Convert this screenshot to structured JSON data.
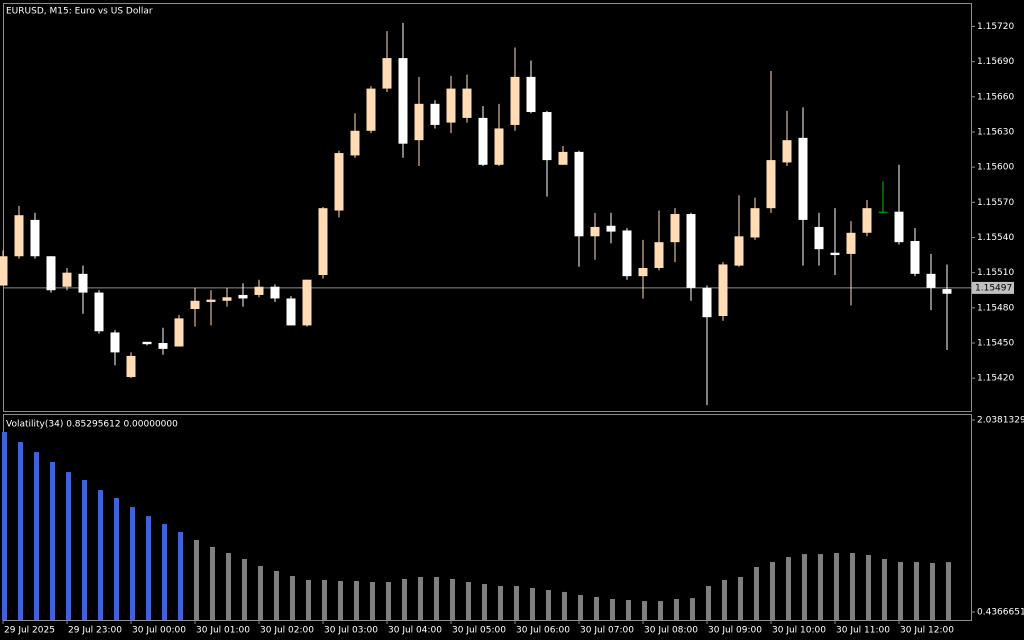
{
  "chart_data": [
    {
      "type": "candlestick",
      "title": "EURUSD, M15:  Euro vs US Dollar",
      "open": [
        1.15499,
        1.15524,
        1.15555,
        1.15524,
        1.15498,
        1.15509,
        1.15493,
        1.15459,
        1.15421,
        1.15451,
        1.1545,
        1.15447,
        1.15479,
        1.15485,
        1.15486,
        1.15491,
        1.15491,
        1.15498,
        1.15488,
        1.15465,
        1.15508,
        1.15563,
        1.1561,
        1.15631,
        1.15667,
        1.15693,
        1.15623,
        1.15654,
        1.15638,
        1.15642,
        1.15642,
        1.15602,
        1.15636,
        1.15677,
        1.15647,
        1.15602,
        1.15613,
        1.15541,
        1.1555,
        1.15546,
        1.15507,
        1.15514,
        1.15536,
        1.1556,
        1.15497,
        1.15473,
        1.15516,
        1.1554,
        1.15565,
        1.15604,
        1.15625,
        1.15549,
        1.15527,
        1.15526,
        1.15544,
        1.15562,
        1.15562,
        1.15537,
        1.15509,
        1.15496
      ],
      "high": [
        1.15529,
        1.15567,
        1.15561,
        1.15524,
        1.15514,
        1.15516,
        1.15495,
        1.15461,
        1.15442,
        1.15451,
        1.15463,
        1.15474,
        1.15497,
        1.15495,
        1.15497,
        1.15501,
        1.15504,
        1.155,
        1.1549,
        1.15504,
        1.15566,
        1.15614,
        1.15646,
        1.15669,
        1.15716,
        1.15723,
        1.15677,
        1.15657,
        1.15678,
        1.15679,
        1.15652,
        1.15654,
        1.15702,
        1.15691,
        1.15648,
        1.15618,
        1.15614,
        1.15561,
        1.15561,
        1.15548,
        1.15538,
        1.15563,
        1.15565,
        1.15561,
        1.15499,
        1.15519,
        1.15576,
        1.15574,
        1.15682,
        1.15648,
        1.15651,
        1.15561,
        1.15565,
        1.15554,
        1.15572,
        1.15588,
        1.15602,
        1.15548,
        1.15526,
        1.15517
      ],
      "low": [
        1.15499,
        1.15522,
        1.15522,
        1.15493,
        1.15495,
        1.15475,
        1.15458,
        1.15431,
        1.1542,
        1.15448,
        1.1544,
        1.15447,
        1.15464,
        1.15465,
        1.15481,
        1.15481,
        1.15489,
        1.15485,
        1.15465,
        1.15464,
        1.15505,
        1.15557,
        1.15608,
        1.15629,
        1.15664,
        1.15608,
        1.15601,
        1.15633,
        1.15629,
        1.15638,
        1.15601,
        1.15601,
        1.15631,
        1.15646,
        1.15575,
        1.15602,
        1.15515,
        1.15521,
        1.15535,
        1.15504,
        1.15488,
        1.15512,
        1.15519,
        1.15486,
        1.15397,
        1.15469,
        1.15515,
        1.15538,
        1.15561,
        1.15601,
        1.15516,
        1.15516,
        1.15508,
        1.15482,
        1.15541,
        1.15561,
        1.15534,
        1.15507,
        1.15478,
        1.15444
      ],
      "close": [
        1.15524,
        1.15559,
        1.15524,
        1.15495,
        1.1551,
        1.15493,
        1.1546,
        1.15442,
        1.15439,
        1.15449,
        1.15445,
        1.15471,
        1.15486,
        1.15487,
        1.15489,
        1.15488,
        1.15498,
        1.15488,
        1.15465,
        1.15504,
        1.15565,
        1.15612,
        1.15631,
        1.15667,
        1.15693,
        1.1562,
        1.15654,
        1.15636,
        1.15667,
        1.15667,
        1.15602,
        1.15633,
        1.15677,
        1.15647,
        1.15606,
        1.15613,
        1.15541,
        1.15549,
        1.15545,
        1.15507,
        1.15514,
        1.15536,
        1.1556,
        1.15497,
        1.15472,
        1.15517,
        1.15541,
        1.15565,
        1.15606,
        1.15623,
        1.15555,
        1.1553,
        1.15525,
        1.15544,
        1.15565,
        1.15562,
        1.15536,
        1.15509,
        1.15497,
        1.15492
      ],
      "up_color": "#ffdcb4",
      "down_color": "#ffffff",
      "doji_color": "#00c000",
      "ylim": [
        1.15392,
        1.1574
      ],
      "yticks": [
        {
          "value": 1.1572,
          "label": "1.15720"
        },
        {
          "value": 1.1569,
          "label": "1.15690"
        },
        {
          "value": 1.1566,
          "label": "1.15660"
        },
        {
          "value": 1.1563,
          "label": "1.15630"
        },
        {
          "value": 1.156,
          "label": "1.15600"
        },
        {
          "value": 1.1557,
          "label": "1.15570"
        },
        {
          "value": 1.1554,
          "label": "1.15540"
        },
        {
          "value": 1.1551,
          "label": "1.15510"
        },
        {
          "value": 1.1548,
          "label": "1.15480"
        },
        {
          "value": 1.1545,
          "label": "1.15450"
        },
        {
          "value": 1.1542,
          "label": "1.15420"
        }
      ],
      "price_line": 1.15497
    },
    {
      "type": "bar",
      "label": "Volatility(34) 0.85295612 0.00000000",
      "categories": [
        "29 Jul 2025",
        null,
        null,
        null,
        "29 Jul 23:00",
        null,
        null,
        null,
        "30 Jul 00:00",
        null,
        null,
        null,
        "30 Jul 01:00",
        null,
        null,
        null,
        "30 Jul 02:00",
        null,
        null,
        null,
        "30 Jul 03:00",
        null,
        null,
        null,
        "30 Jul 04:00",
        null,
        null,
        null,
        "30 Jul 05:00",
        null,
        null,
        null,
        "30 Jul 06:00",
        null,
        null,
        null,
        "30 Jul 07:00",
        null,
        null,
        null,
        "30 Jul 08:00",
        null,
        null,
        null,
        "30 Jul 09:00",
        null,
        null,
        null,
        "30 Jul 10:00",
        null,
        null,
        null,
        "30 Jul 11:00",
        null,
        null,
        null,
        "30 Jul 12:00",
        null,
        null,
        null
      ],
      "values": [
        1.938,
        1.855,
        1.771,
        1.688,
        1.604,
        1.538,
        1.454,
        1.388,
        1.312,
        1.237,
        1.171,
        1.104,
        1.037,
        0.979,
        0.929,
        0.879,
        0.82,
        0.779,
        0.737,
        0.704,
        0.704,
        0.695,
        0.695,
        0.687,
        0.687,
        0.712,
        0.729,
        0.729,
        0.712,
        0.687,
        0.67,
        0.654,
        0.654,
        0.637,
        0.62,
        0.604,
        0.578,
        0.562,
        0.545,
        0.537,
        0.528,
        0.528,
        0.545,
        0.553,
        0.654,
        0.704,
        0.729,
        0.812,
        0.854,
        0.895,
        0.92,
        0.92,
        0.929,
        0.929,
        0.912,
        0.879,
        0.854,
        0.854,
        0.845,
        0.85295612
      ],
      "colors": [
        "#3e63dd",
        "#3e63dd",
        "#3e63dd",
        "#3e63dd",
        "#3e63dd",
        "#3e63dd",
        "#3e63dd",
        "#3e63dd",
        "#3e63dd",
        "#3e63dd",
        "#3e63dd",
        "#3e63dd",
        "#808080",
        "#808080",
        "#808080",
        "#808080",
        "#808080",
        "#808080",
        "#808080",
        "#808080",
        "#808080",
        "#808080",
        "#808080",
        "#808080",
        "#808080",
        "#808080",
        "#808080",
        "#808080",
        "#808080",
        "#808080",
        "#808080",
        "#808080",
        "#808080",
        "#808080",
        "#808080",
        "#808080",
        "#808080",
        "#808080",
        "#808080",
        "#808080",
        "#808080",
        "#808080",
        "#808080",
        "#808080",
        "#808080",
        "#808080",
        "#808080",
        "#808080",
        "#808080",
        "#808080",
        "#808080",
        "#808080",
        "#808080",
        "#808080",
        "#808080",
        "#808080",
        "#808080",
        "#808080",
        "#808080",
        "#808080"
      ],
      "ylim": [
        0.37,
        2.08
      ],
      "yticks": [
        2.03813292,
        0.43666514
      ]
    }
  ]
}
